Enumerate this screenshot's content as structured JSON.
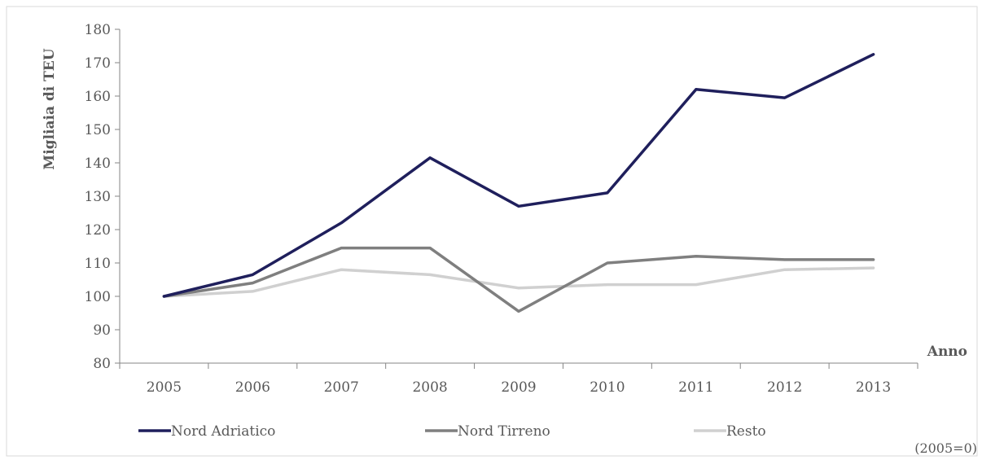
{
  "chart_data": {
    "type": "line",
    "title": "",
    "xlabel": "Anno",
    "ylabel": "Migliaia di TEU",
    "note": "(2005=0)",
    "categories": [
      "2005",
      "2006",
      "2007",
      "2008",
      "2009",
      "2010",
      "2011",
      "2012",
      "2013"
    ],
    "ylim": [
      80,
      180
    ],
    "yticks": [
      80,
      90,
      100,
      110,
      120,
      130,
      140,
      150,
      160,
      170,
      180
    ],
    "grid": false,
    "legend_position": "bottom",
    "series": [
      {
        "name": "Nord Adriatico",
        "color": "#1f1f5c",
        "values": [
          100,
          106.5,
          122,
          141.5,
          127,
          131,
          162,
          159.5,
          172.5
        ]
      },
      {
        "name": "Nord Tirreno",
        "color": "#7f7f7f",
        "values": [
          100,
          104,
          114.5,
          114.5,
          95.5,
          110,
          112,
          111,
          111
        ]
      },
      {
        "name": "Resto",
        "color": "#d0d0d0",
        "values": [
          100,
          101.5,
          108,
          106.5,
          102.5,
          103.5,
          103.5,
          108,
          108.5
        ]
      }
    ]
  }
}
